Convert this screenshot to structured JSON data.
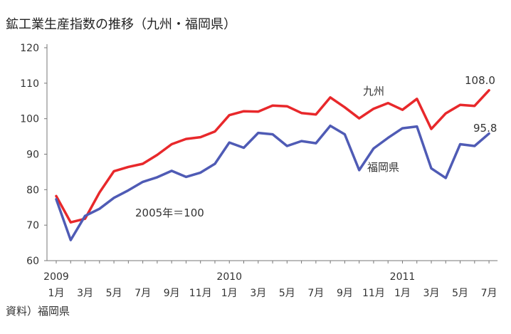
{
  "chart_data": {
    "type": "line",
    "title": "鉱工業生産指数の推移（九州・福岡県）",
    "note": "2005年＝100",
    "source": "資料）福岡県",
    "ylim": [
      60,
      120
    ],
    "yticks": [
      "60",
      "70",
      "80",
      "90",
      "100",
      "110",
      "120"
    ],
    "year_labels": [
      {
        "index": 0,
        "label": "2009"
      },
      {
        "index": 12,
        "label": "2010"
      },
      {
        "index": 24,
        "label": "2011"
      }
    ],
    "month_labels": [
      {
        "index": 0,
        "label": "1月"
      },
      {
        "index": 2,
        "label": "3月"
      },
      {
        "index": 4,
        "label": "5月"
      },
      {
        "index": 6,
        "label": "7月"
      },
      {
        "index": 8,
        "label": "9月"
      },
      {
        "index": 10,
        "label": "11月"
      },
      {
        "index": 12,
        "label": "1月"
      },
      {
        "index": 14,
        "label": "3月"
      },
      {
        "index": 16,
        "label": "5月"
      },
      {
        "index": 18,
        "label": "7月"
      },
      {
        "index": 20,
        "label": "9月"
      },
      {
        "index": 22,
        "label": "11月"
      },
      {
        "index": 24,
        "label": "1月"
      },
      {
        "index": 26,
        "label": "3月"
      },
      {
        "index": 28,
        "label": "5月"
      },
      {
        "index": 30,
        "label": "7月"
      }
    ],
    "x": [
      "2009-01",
      "2009-02",
      "2009-03",
      "2009-04",
      "2009-05",
      "2009-06",
      "2009-07",
      "2009-08",
      "2009-09",
      "2009-10",
      "2009-11",
      "2009-12",
      "2010-01",
      "2010-02",
      "2010-03",
      "2010-04",
      "2010-05",
      "2010-06",
      "2010-07",
      "2010-08",
      "2010-09",
      "2010-10",
      "2010-11",
      "2010-12",
      "2011-01",
      "2011-02",
      "2011-03",
      "2011-04",
      "2011-05",
      "2011-06",
      "2011-07"
    ],
    "series": [
      {
        "name": "九州",
        "color": "#e8282b",
        "end_label": "108.0",
        "values": [
          78.2,
          70.8,
          71.8,
          79.2,
          85.2,
          86.4,
          87.3,
          89.8,
          92.8,
          94.3,
          94.8,
          96.4,
          101.0,
          102.1,
          102.0,
          103.7,
          103.5,
          101.6,
          101.2,
          106.0,
          103.2,
          100.1,
          102.8,
          104.4,
          102.5,
          105.6,
          97.1,
          101.5,
          103.9,
          103.6,
          108.0
        ]
      },
      {
        "name": "福岡県",
        "color": "#4f5bb5",
        "end_label": "95.8",
        "values": [
          77.3,
          65.8,
          72.6,
          74.6,
          77.7,
          79.8,
          82.2,
          83.5,
          85.3,
          83.6,
          84.8,
          87.3,
          93.3,
          91.8,
          96.0,
          95.6,
          92.3,
          93.7,
          93.1,
          98.0,
          95.6,
          85.5,
          91.6,
          94.6,
          97.3,
          97.8,
          86.0,
          83.3,
          92.8,
          92.3,
          95.8
        ]
      }
    ]
  }
}
